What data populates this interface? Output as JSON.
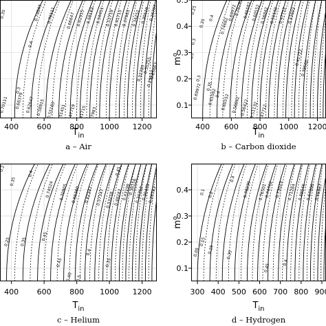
{
  "chart_data": [
    {
      "type": "line",
      "panel": "a",
      "caption": "a – Air",
      "xlabel": "T",
      "xlabel_sub": "in",
      "ylabel": "",
      "xlim": [
        330,
        1290
      ],
      "ylim": [
        0.05,
        0.5
      ],
      "xticks": [
        400,
        600,
        800,
        1000,
        1200
      ],
      "xtick_labels": [
        "400",
        "600",
        "800",
        "1000",
        "1200"
      ],
      "yticks": [],
      "ytick_labels": [],
      "grid": true,
      "solid_contours": {
        "style": "solid",
        "x_at_bottom": [
          420,
          520,
          610,
          690,
          760,
          820,
          880,
          940,
          1000,
          1060,
          1110,
          1160,
          1210,
          1255
        ],
        "labels": [
          {
            "text": "0.70111",
            "x": 360,
            "y": 0.1
          },
          {
            "text": "0.66379",
            "x": 455,
            "y": 0.115
          },
          {
            "text": "0.62647",
            "x": 520,
            "y": 0.1
          },
          {
            "text": "0.58915",
            "x": 585,
            "y": 0.09
          },
          {
            "text": "0.55183",
            "x": 650,
            "y": 0.08
          },
          {
            "text": "0.51451",
            "x": 715,
            "y": 0.07
          },
          {
            "text": "0.47719",
            "x": 775,
            "y": 0.07
          },
          {
            "text": "0.41715",
            "x": 840,
            "y": 0.065
          },
          {
            "text": "0.37983",
            "x": 905,
            "y": 0.06
          }
        ]
      },
      "dashed_contours": {
        "style": "dashed",
        "x_at_bottom": [
          470,
          560,
          650,
          730,
          800,
          860,
          920,
          980,
          1040,
          1090,
          1140,
          1190,
          1240
        ],
        "labels": [
          {
            "text": "0.35",
            "x": 355,
            "y": 0.445
          },
          {
            "text": "0.4",
            "x": 525,
            "y": 0.33
          },
          {
            "text": "0.3",
            "x": 450,
            "y": 0.155
          },
          {
            "text": "0.70111",
            "x": 650,
            "y": 0.44
          },
          {
            "text": "0.74843",
            "x": 570,
            "y": 0.45
          },
          {
            "text": "0.66647",
            "x": 770,
            "y": 0.42
          },
          {
            "text": "0.62915",
            "x": 830,
            "y": 0.43
          },
          {
            "text": "0.58183",
            "x": 890,
            "y": 0.44
          },
          {
            "text": "0.54451",
            "x": 950,
            "y": 0.44
          },
          {
            "text": "0.51719",
            "x": 1010,
            "y": 0.43
          },
          {
            "text": "0.41715",
            "x": 1060,
            "y": 0.43
          },
          {
            "text": "0.37983",
            "x": 1110,
            "y": 0.43
          },
          {
            "text": "0.34251",
            "x": 1170,
            "y": 0.43
          },
          {
            "text": "0.30519",
            "x": 1225,
            "y": 0.44
          },
          {
            "text": "0.26787",
            "x": 1275,
            "y": 0.45
          },
          {
            "text": "0.35255",
            "x": 1240,
            "y": 0.25
          },
          {
            "text": "0.32785",
            "x": 1200,
            "y": 0.22
          },
          {
            "text": "0.29327",
            "x": 1260,
            "y": 0.2
          },
          {
            "text": "0.25663",
            "x": 1280,
            "y": 0.23
          }
        ]
      }
    },
    {
      "type": "line",
      "panel": "b",
      "caption": "b – Carbon dioxide",
      "xlabel": "T",
      "xlabel_sub": "in",
      "ylabel": "m",
      "ylabel_sup": "o",
      "xlim": [
        320,
        1260
      ],
      "ylim": [
        0.05,
        0.5
      ],
      "xticks": [
        400,
        600,
        800,
        1000,
        1200
      ],
      "xtick_labels": [
        "400",
        "600",
        "800",
        "1000",
        "1200"
      ],
      "yticks": [
        0.1,
        0.2,
        0.3,
        0.4,
        0.5
      ],
      "ytick_labels": [
        "0.1",
        "0.2",
        "0.3",
        "0.4",
        "0.5"
      ],
      "grid": true,
      "solid_contours": {
        "style": "solid",
        "x_at_bottom": [
          400,
          500,
          590,
          670,
          740,
          800,
          860,
          920,
          980,
          1040,
          1100,
          1150,
          1200,
          1240
        ],
        "labels": [
          {
            "text": "0.69972",
            "x": 370,
            "y": 0.15
          },
          {
            "text": "0.65582",
            "x": 475,
            "y": 0.13
          },
          {
            "text": "0.60552",
            "x": 565,
            "y": 0.11
          },
          {
            "text": "0.56842",
            "x": 640,
            "y": 0.1
          },
          {
            "text": "0.56422",
            "x": 700,
            "y": 0.09
          },
          {
            "text": "0.51132",
            "x": 765,
            "y": 0.08
          },
          {
            "text": "0.47712",
            "x": 830,
            "y": 0.07
          }
        ]
      },
      "dashed_contours": {
        "style": "dashed",
        "x_at_bottom": [
          450,
          540,
          630,
          710,
          780,
          840,
          900,
          960,
          1020,
          1070,
          1120,
          1170,
          1220
        ],
        "labels": [
          {
            "text": "0.25",
            "x": 345,
            "y": 0.46
          },
          {
            "text": "0.3",
            "x": 345,
            "y": 0.34
          },
          {
            "text": "0.35",
            "x": 405,
            "y": 0.41
          },
          {
            "text": "0.4",
            "x": 470,
            "y": 0.43
          },
          {
            "text": "0.25",
            "x": 330,
            "y": 0.28
          },
          {
            "text": "0.3",
            "x": 380,
            "y": 0.2
          },
          {
            "text": "0.35",
            "x": 455,
            "y": 0.17
          },
          {
            "text": "0.4",
            "x": 515,
            "y": 0.14
          },
          {
            "text": "0.74682",
            "x": 560,
            "y": 0.4
          },
          {
            "text": "0.69972",
            "x": 615,
            "y": 0.45
          },
          {
            "text": "0.78282",
            "x": 660,
            "y": 0.47
          },
          {
            "text": "0.65582",
            "x": 720,
            "y": 0.46
          },
          {
            "text": "0.60552",
            "x": 780,
            "y": 0.45
          },
          {
            "text": "0.56842",
            "x": 840,
            "y": 0.44
          },
          {
            "text": "0.51132",
            "x": 905,
            "y": 0.44
          },
          {
            "text": "0.47712",
            "x": 965,
            "y": 0.44
          },
          {
            "text": "0.43602",
            "x": 1030,
            "y": 0.44
          },
          {
            "text": "0.41712",
            "x": 1080,
            "y": 0.28
          },
          {
            "text": "0.39582",
            "x": 1120,
            "y": 0.24
          }
        ]
      }
    },
    {
      "type": "line",
      "panel": "c",
      "caption": "c – Helium",
      "xlabel": "T",
      "xlabel_sub": "in",
      "ylabel": "",
      "xlim": [
        330,
        1290
      ],
      "ylim": [
        0.05,
        0.5
      ],
      "xticks": [
        400,
        600,
        800,
        1000,
        1200
      ],
      "xtick_labels": [
        "400",
        "600",
        "800",
        "1000",
        "1200"
      ],
      "yticks": [],
      "ytick_labels": [],
      "grid": true,
      "solid_contours": {
        "style": "solid",
        "x_at_bottom": [
          370,
          470,
          560,
          640,
          720,
          790,
          850,
          910,
          960,
          1010,
          1060,
          1100,
          1140,
          1180,
          1220,
          1260
        ],
        "labels": [
          {
            "text": "0.74524",
            "x": 640,
            "y": 0.4
          },
          {
            "text": "0.70905",
            "x": 725,
            "y": 0.39
          },
          {
            "text": "0.66380",
            "x": 800,
            "y": 0.38
          },
          {
            "text": "0.62347",
            "x": 880,
            "y": 0.38
          },
          {
            "text": "0.57347",
            "x": 950,
            "y": 0.37
          },
          {
            "text": "0.53258",
            "x": 1010,
            "y": 0.36
          },
          {
            "text": "0.48287",
            "x": 1060,
            "y": 0.37
          },
          {
            "text": "0.43198",
            "x": 1110,
            "y": 0.39
          },
          {
            "text": "0.38156",
            "x": 1150,
            "y": 0.41
          },
          {
            "text": "0.34752",
            "x": 1190,
            "y": 0.38
          },
          {
            "text": "0.30478",
            "x": 1230,
            "y": 0.39
          },
          {
            "text": "0.26783",
            "x": 1270,
            "y": 0.38
          }
        ]
      },
      "dashed_contours": {
        "style": "dashed",
        "x_at_bottom": [
          420,
          515,
          600,
          680,
          755,
          820,
          880,
          935,
          985,
          1035,
          1080,
          1120,
          1160,
          1200,
          1240
        ],
        "labels": [
          {
            "text": "0.2",
            "x": 350,
            "y": 0.48
          },
          {
            "text": "0.35",
            "x": 415,
            "y": 0.43
          },
          {
            "text": "0.4",
            "x": 525,
            "y": 0.46
          },
          {
            "text": "0.45",
            "x": 1060,
            "y": 0.47
          },
          {
            "text": "0.25",
            "x": 380,
            "y": 0.2
          },
          {
            "text": "0.35",
            "x": 480,
            "y": 0.2
          },
          {
            "text": "0.45",
            "x": 610,
            "y": 0.22
          },
          {
            "text": "0.45",
            "x": 700,
            "y": 0.12
          },
          {
            "text": "0.4",
            "x": 880,
            "y": 0.16
          },
          {
            "text": "0.35",
            "x": 1000,
            "y": 0.12
          },
          {
            "text": "0.45",
            "x": 760,
            "y": 0.065
          },
          {
            "text": "0.5",
            "x": 820,
            "y": 0.06
          }
        ]
      }
    },
    {
      "type": "line",
      "panel": "d",
      "caption": "d – Hydrogen",
      "xlabel": "T",
      "xlabel_sub": "in",
      "ylabel": "m",
      "ylabel_sup": "o",
      "xlim": [
        270,
        920
      ],
      "ylim": [
        0.05,
        0.5
      ],
      "xticks": [
        300,
        400,
        500,
        600,
        700,
        800,
        900
      ],
      "xtick_labels": [
        "300",
        "400",
        "500",
        "600",
        "700",
        "800",
        "900"
      ],
      "yticks": [
        0.1,
        0.2,
        0.3,
        0.4
      ],
      "ytick_labels": [
        "0.1",
        "0.2",
        "0.3",
        "0.4"
      ],
      "grid": true,
      "solid_contours": {
        "style": "solid",
        "x_at_bottom": [
          300,
          360,
          420,
          480,
          540,
          590,
          640,
          690,
          730,
          770,
          810,
          845,
          880,
          910
        ],
        "labels": [
          {
            "text": "0.78239",
            "x": 545,
            "y": 0.4
          },
          {
            "text": "0.76501",
            "x": 620,
            "y": 0.39
          },
          {
            "text": "0.73023",
            "x": 700,
            "y": 0.4
          },
          {
            "text": "0.71284",
            "x": 760,
            "y": 0.39
          },
          {
            "text": "0.69545",
            "x": 810,
            "y": 0.39
          },
          {
            "text": "0.67806",
            "x": 850,
            "y": 0.39
          },
          {
            "text": "0.66067",
            "x": 890,
            "y": 0.39
          }
        ]
      },
      "dashed_contours": {
        "style": "dashed",
        "x_at_bottom": [
          330,
          390,
          450,
          510,
          565,
          615,
          665,
          710,
          750,
          790,
          828,
          862,
          895
        ],
        "labels": [
          {
            "text": "0.1",
            "x": 330,
            "y": 0.39
          },
          {
            "text": "0.2",
            "x": 370,
            "y": 0.38
          },
          {
            "text": "0.4",
            "x": 475,
            "y": 0.44
          },
          {
            "text": "0.74762",
            "x": 650,
            "y": 0.4
          },
          {
            "text": "0.05",
            "x": 300,
            "y": 0.16
          },
          {
            "text": "0.15",
            "x": 330,
            "y": 0.2
          },
          {
            "text": "0.25",
            "x": 370,
            "y": 0.17
          },
          {
            "text": "0.35",
            "x": 460,
            "y": 0.15
          },
          {
            "text": "0.45",
            "x": 640,
            "y": 0.1
          },
          {
            "text": "0.4",
            "x": 730,
            "y": 0.12
          }
        ]
      }
    }
  ]
}
